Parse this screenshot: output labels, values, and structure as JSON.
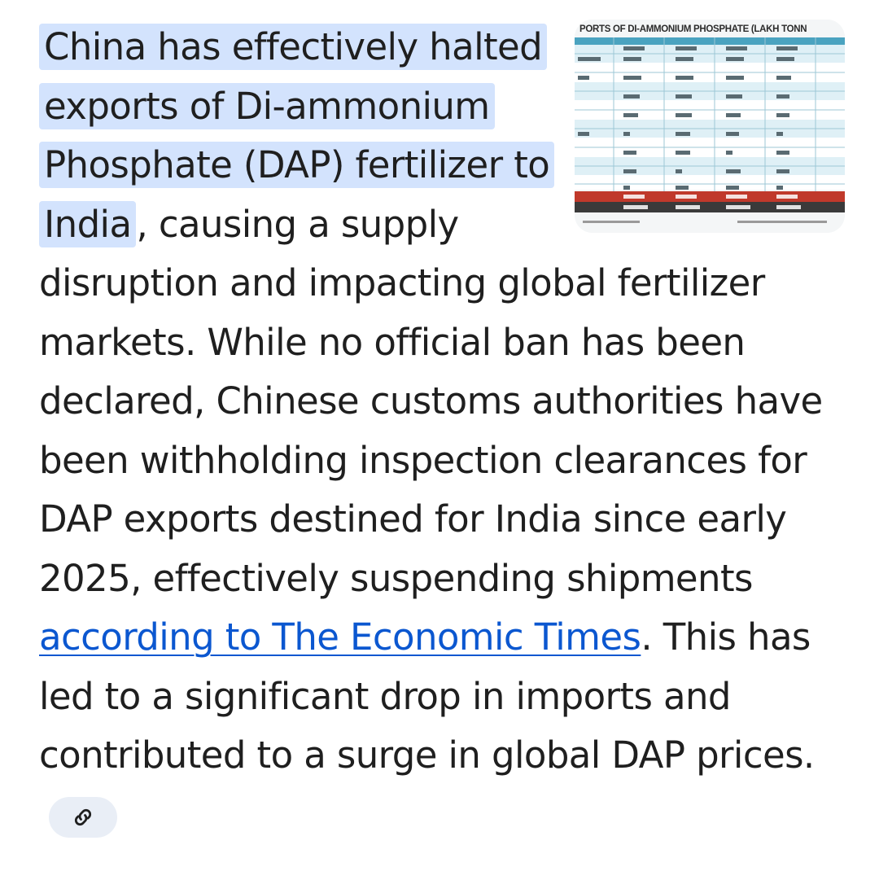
{
  "answer": {
    "highlight_text": "China has effectively halted exports of Di-ammonium Phosphate (DAP) fertilizer to India",
    "after_highlight": ", causing a supply disruption and impacting global fertilizer markets. While no official ban has been declared, Chinese customs authorities have been withholding inspection clearances for DAP exports destined for India since early 2025, effectively suspending shipments ",
    "source_link_text": "according to The Economic Times",
    "after_link": ". This has led to a significant drop in imports and contributed to a surge in global DAP prices.",
    "link_chip_icon": "link-icon"
  },
  "thumbnail": {
    "title": "PORTS OF DI-AMMONIUM PHOSPHATE (LAKH TONN",
    "accent_color": "#1b6f86",
    "total_row_color": "#c0392b",
    "header_color": "#4aa3c0"
  },
  "colors": {
    "highlight": "#d3e3fd",
    "link": "#0b57d0",
    "chip_bg": "#e9eef6"
  }
}
